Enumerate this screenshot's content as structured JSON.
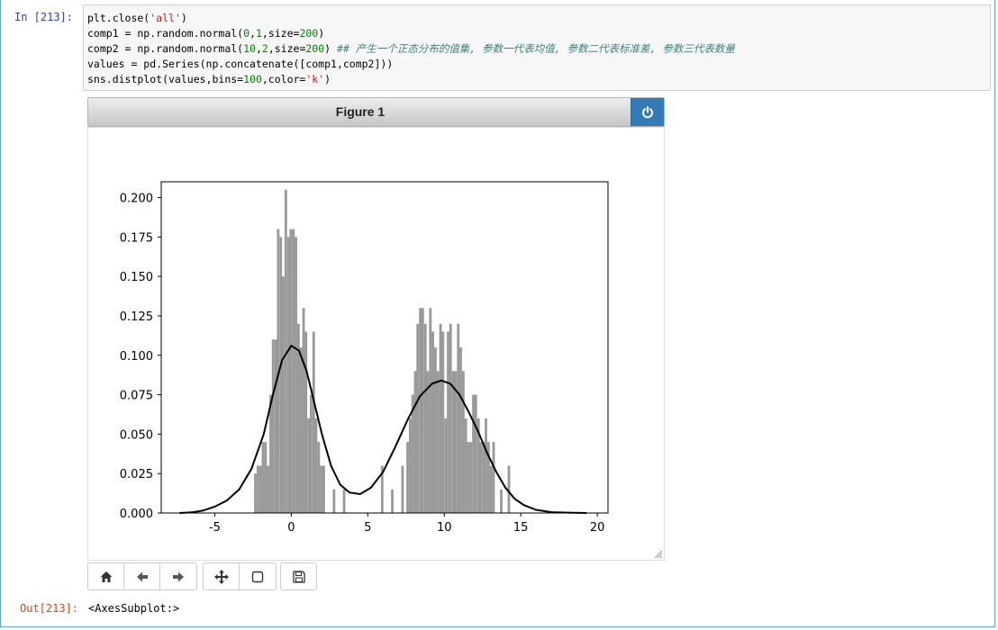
{
  "cell": {
    "in_prompt": "In  [213]:",
    "out_prompt": "Out[213]:",
    "output_text": "<AxesSubplot:>"
  },
  "code": {
    "line1": {
      "a": "plt.close(",
      "s": "'all'",
      "b": ")"
    },
    "line2": {
      "a": "comp1 = np.random.normal(",
      "n1": "0",
      "c1": ",",
      "n2": "1",
      "c2": ",size=",
      "n3": "200",
      "b": ")"
    },
    "line3": {
      "a": "comp2 = np.random.normal(",
      "n1": "10",
      "c1": ",",
      "n2": "2",
      "c2": ",size=",
      "n3": "200",
      "b": ") ",
      "comment": "## 产生一个正态分布的值集, 参数一代表均值, 参数二代表标准差, 参数三代表数量"
    },
    "line4": {
      "a": "values = pd.Series(np.concatenate([comp1,comp2]))"
    },
    "line5": {
      "a": "sns.distplot(values,bins=",
      "n1": "100",
      "c1": ",color=",
      "s": "'k'",
      "b": ")"
    }
  },
  "figure": {
    "title": "Figure 1",
    "power_icon": "power-icon"
  },
  "toolbar": {
    "home_icon": "home-icon",
    "back_icon": "arrow-left-icon",
    "forward_icon": "arrow-right-icon",
    "pan_icon": "move-icon",
    "zoom_icon": "square-icon",
    "save_icon": "save-icon"
  },
  "colors": {
    "bar": "#999999",
    "kde": "#000000",
    "accent": "#337ab7"
  },
  "chart_data": {
    "type": "bar",
    "xlim": [
      -8.5,
      20.7
    ],
    "ylim": [
      0,
      0.21
    ],
    "xticks": [
      -5,
      0,
      5,
      10,
      15,
      20
    ],
    "xtick_labels": [
      "-5",
      "0",
      "5",
      "10",
      "15",
      "20"
    ],
    "yticks": [
      0,
      0.025,
      0.05,
      0.075,
      0.1,
      0.125,
      0.15,
      0.175,
      0.2
    ],
    "ytick_labels": [
      "0.000",
      "0.025",
      "0.050",
      "0.075",
      "0.100",
      "0.125",
      "0.150",
      "0.175",
      "0.200"
    ],
    "title": "",
    "xlabel": "",
    "ylabel": "",
    "bin_width": 0.166,
    "bars": [
      [
        -2.43,
        0.025
      ],
      [
        -2.26,
        0.03
      ],
      [
        -2.09,
        0.03
      ],
      [
        -1.93,
        0.045
      ],
      [
        -1.76,
        0.045
      ],
      [
        -1.6,
        0.03
      ],
      [
        -1.43,
        0.075
      ],
      [
        -1.27,
        0.11
      ],
      [
        -1.1,
        0.11
      ],
      [
        -0.94,
        0.18
      ],
      [
        -0.77,
        0.175
      ],
      [
        -0.61,
        0.15
      ],
      [
        -0.44,
        0.205
      ],
      [
        -0.27,
        0.175
      ],
      [
        -0.11,
        0.18
      ],
      [
        0.06,
        0.18
      ],
      [
        0.22,
        0.175
      ],
      [
        0.39,
        0.12
      ],
      [
        0.55,
        0.105
      ],
      [
        0.72,
        0.13
      ],
      [
        0.88,
        0.115
      ],
      [
        1.05,
        0.06
      ],
      [
        1.21,
        0.075
      ],
      [
        1.38,
        0.115
      ],
      [
        1.54,
        0.06
      ],
      [
        1.71,
        0.045
      ],
      [
        1.87,
        0.03
      ],
      [
        2.04,
        0.03
      ],
      [
        2.71,
        0.015
      ],
      [
        3.37,
        0.015
      ],
      [
        5.86,
        0.03
      ],
      [
        6.52,
        0.015
      ],
      [
        7.19,
        0.03
      ],
      [
        7.52,
        0.045
      ],
      [
        7.69,
        0.06
      ],
      [
        7.85,
        0.075
      ],
      [
        8.02,
        0.09
      ],
      [
        8.18,
        0.12
      ],
      [
        8.35,
        0.13
      ],
      [
        8.51,
        0.13
      ],
      [
        8.68,
        0.12
      ],
      [
        8.84,
        0.09
      ],
      [
        9.01,
        0.13
      ],
      [
        9.17,
        0.115
      ],
      [
        9.34,
        0.105
      ],
      [
        9.5,
        0.09
      ],
      [
        9.67,
        0.12
      ],
      [
        9.83,
        0.115
      ],
      [
        10.0,
        0.06
      ],
      [
        10.17,
        0.115
      ],
      [
        10.33,
        0.12
      ],
      [
        10.5,
        0.09
      ],
      [
        10.66,
        0.09
      ],
      [
        10.83,
        0.12
      ],
      [
        10.99,
        0.105
      ],
      [
        11.16,
        0.09
      ],
      [
        11.32,
        0.06
      ],
      [
        11.49,
        0.045
      ],
      [
        11.65,
        0.045
      ],
      [
        11.82,
        0.075
      ],
      [
        11.98,
        0.075
      ],
      [
        12.15,
        0.06
      ],
      [
        12.31,
        0.045
      ],
      [
        12.48,
        0.045
      ],
      [
        12.64,
        0.06
      ],
      [
        12.81,
        0.045
      ],
      [
        12.97,
        0.03
      ],
      [
        13.14,
        0.045
      ],
      [
        13.64,
        0.015
      ],
      [
        14.14,
        0.03
      ]
    ],
    "kde": [
      [
        -7.3,
        0.0
      ],
      [
        -6.5,
        0.0004
      ],
      [
        -5.8,
        0.0015
      ],
      [
        -5.0,
        0.004
      ],
      [
        -4.2,
        0.008
      ],
      [
        -3.4,
        0.015
      ],
      [
        -2.6,
        0.028
      ],
      [
        -1.8,
        0.05
      ],
      [
        -1.2,
        0.075
      ],
      [
        -0.6,
        0.097
      ],
      [
        0.0,
        0.106
      ],
      [
        0.5,
        0.103
      ],
      [
        1.0,
        0.09
      ],
      [
        1.5,
        0.07
      ],
      [
        2.0,
        0.05
      ],
      [
        2.6,
        0.03
      ],
      [
        3.2,
        0.018
      ],
      [
        3.8,
        0.013
      ],
      [
        4.5,
        0.012
      ],
      [
        5.2,
        0.016
      ],
      [
        6.0,
        0.026
      ],
      [
        6.8,
        0.042
      ],
      [
        7.6,
        0.059
      ],
      [
        8.4,
        0.074
      ],
      [
        9.2,
        0.082
      ],
      [
        9.8,
        0.084
      ],
      [
        10.4,
        0.082
      ],
      [
        11.0,
        0.075
      ],
      [
        11.6,
        0.064
      ],
      [
        12.2,
        0.052
      ],
      [
        12.8,
        0.038
      ],
      [
        13.4,
        0.026
      ],
      [
        14.0,
        0.016
      ],
      [
        14.6,
        0.009
      ],
      [
        15.2,
        0.005
      ],
      [
        16.0,
        0.002
      ],
      [
        17.0,
        0.0005
      ],
      [
        18.5,
        0.0001
      ],
      [
        19.3,
        0.0
      ]
    ]
  }
}
